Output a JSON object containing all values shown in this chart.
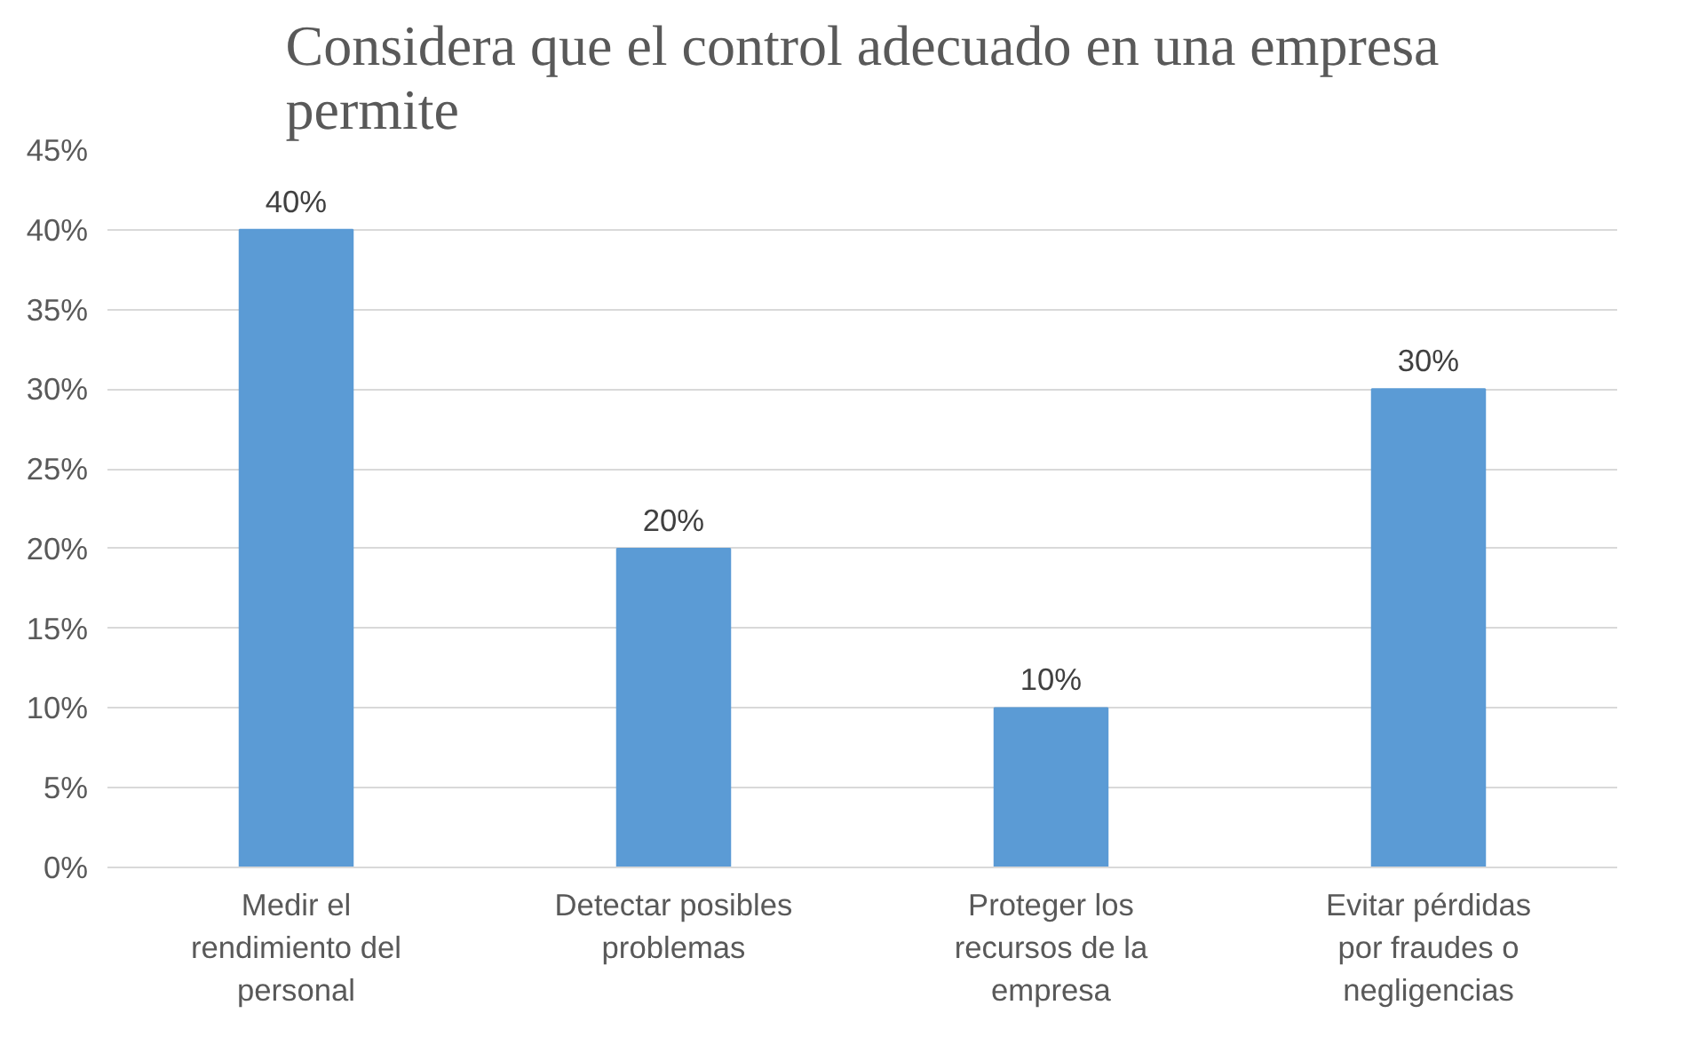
{
  "chart_data": {
    "type": "bar",
    "title": "Considera que el control adecuado en una empresa permite",
    "categories": [
      "Medir el rendimiento del personal",
      "Detectar posibles problemas",
      "Proteger los recursos de la empresa",
      "Evitar pérdidas por fraudes o negligencias"
    ],
    "values": [
      40,
      20,
      10,
      30
    ],
    "value_labels": [
      "40%",
      "20%",
      "10%",
      "30%"
    ],
    "color": "#5b9bd5",
    "ylim": [
      0,
      45
    ],
    "yticks": [
      {
        "value": 0,
        "label": "0%"
      },
      {
        "value": 5,
        "label": "5%"
      },
      {
        "value": 10,
        "label": "10%"
      },
      {
        "value": 15,
        "label": "15%"
      },
      {
        "value": 20,
        "label": "20%"
      },
      {
        "value": 25,
        "label": "25%"
      },
      {
        "value": 30,
        "label": "30%"
      },
      {
        "value": 35,
        "label": "35%"
      },
      {
        "value": 40,
        "label": "40%"
      },
      {
        "value": 45,
        "label": "45%"
      }
    ],
    "grid": "y"
  }
}
